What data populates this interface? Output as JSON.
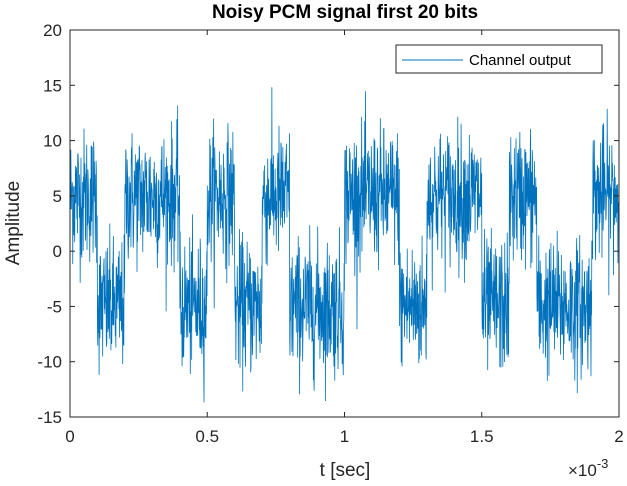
{
  "chart_data": {
    "type": "line",
    "title": "Noisy PCM signal first 20 bits",
    "xlabel": "t [sec]",
    "ylabel": "Amplitude",
    "x_exponent_label": "×10",
    "x_exponent": "-3",
    "xlim": [
      0,
      0.002
    ],
    "ylim": [
      -15,
      20
    ],
    "x_ticks": [
      0,
      0.0005,
      0.001,
      0.0015,
      0.002
    ],
    "x_tick_labels": [
      "0",
      "0.5",
      "1",
      "1.5",
      "2"
    ],
    "y_ticks": [
      -15,
      -10,
      -5,
      0,
      5,
      10,
      15,
      20
    ],
    "y_tick_labels": [
      "-15",
      "-10",
      "-5",
      "0",
      "5",
      "10",
      "15",
      "20"
    ],
    "grid": false,
    "legend_position": "top-right",
    "series": [
      {
        "name": "Channel output",
        "color": "#0072bd",
        "bits": [
          1,
          -1,
          1,
          1,
          -1,
          1,
          -1,
          1,
          -1,
          -1,
          1,
          1,
          -1,
          1,
          1,
          -1,
          1,
          -1,
          -1,
          1
        ],
        "bit_amplitude": 5,
        "noise_std": 3,
        "samples": 2000
      }
    ]
  }
}
